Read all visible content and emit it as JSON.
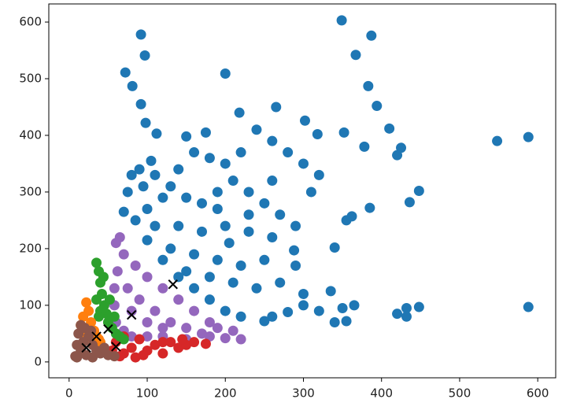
{
  "chart_data": {
    "type": "scatter",
    "xlim": [
      -26,
      623
    ],
    "ylim": [
      -28,
      632
    ],
    "xticks": [
      0,
      100,
      200,
      300,
      400,
      500,
      600
    ],
    "yticks": [
      0,
      100,
      200,
      300,
      400,
      500,
      600
    ],
    "grid": false,
    "series": [
      {
        "color": "#1f77b4",
        "marker": "o",
        "x": [
          92,
          97,
          72,
          81,
          200,
          349,
          387,
          367,
          383,
          394,
          92,
          98,
          112,
          150,
          175,
          218,
          265,
          302,
          318,
          352,
          378,
          410,
          420,
          425,
          436,
          448,
          385,
          362,
          355,
          340,
          288,
          548,
          588,
          588,
          448,
          432,
          420,
          432,
          365,
          350,
          355,
          340,
          335,
          300,
          280,
          260,
          250,
          220,
          200,
          180,
          160,
          140,
          120,
          100,
          85,
          70,
          75,
          80,
          90,
          110,
          130,
          150,
          170,
          190,
          210,
          230,
          250,
          270,
          290,
          310,
          320,
          300,
          280,
          260,
          240,
          220,
          200,
          180,
          160,
          140,
          120,
          100,
          110,
          140,
          170,
          200,
          230,
          260,
          290,
          250,
          220,
          190,
          160,
          130,
          240,
          270,
          300,
          320,
          210,
          180,
          150,
          260,
          230,
          205,
          190,
          95,
          105
        ],
        "values": [
          578,
          541,
          511,
          487,
          509,
          603,
          576,
          542,
          487,
          452,
          455,
          422,
          403,
          398,
          405,
          440,
          450,
          426,
          402,
          405,
          380,
          412,
          365,
          378,
          282,
          302,
          272,
          257,
          250,
          202,
          197,
          390,
          397,
          97,
          97,
          95,
          85,
          80,
          100,
          95,
          72,
          70,
          125,
          100,
          88,
          80,
          72,
          80,
          90,
          110,
          130,
          150,
          180,
          215,
          250,
          265,
          300,
          330,
          340,
          330,
          310,
          290,
          280,
          300,
          320,
          300,
          280,
          260,
          240,
          300,
          330,
          350,
          370,
          390,
          410,
          370,
          350,
          360,
          370,
          340,
          290,
          270,
          240,
          240,
          230,
          240,
          230,
          220,
          170,
          180,
          170,
          180,
          190,
          200,
          130,
          140,
          120,
          90,
          140,
          150,
          160,
          320,
          260,
          210,
          270,
          310,
          355
        ]
      },
      {
        "color": "#9467bd",
        "marker": "o",
        "x": [
          60,
          65,
          70,
          62,
          58,
          58,
          60,
          70,
          80,
          100,
          120,
          150,
          180,
          200,
          220,
          210,
          180,
          160,
          140,
          120,
          100,
          85,
          75,
          90,
          110,
          130,
          150,
          100,
          80,
          120,
          170,
          190
        ],
        "values": [
          210,
          220,
          190,
          160,
          130,
          100,
          70,
          55,
          45,
          45,
          45,
          40,
          45,
          42,
          40,
          55,
          70,
          90,
          110,
          130,
          150,
          170,
          130,
          110,
          90,
          70,
          60,
          70,
          90,
          60,
          50,
          60
        ]
      },
      {
        "color": "#d62728",
        "marker": "o",
        "x": [
          55,
          60,
          70,
          80,
          90,
          100,
          110,
          120,
          130,
          140,
          150,
          160,
          175,
          70,
          65,
          95,
          120,
          145,
          85
        ],
        "values": [
          20,
          35,
          15,
          25,
          40,
          20,
          30,
          15,
          35,
          25,
          30,
          35,
          32,
          45,
          10,
          12,
          35,
          40,
          8
        ]
      },
      {
        "color": "#2ca02c",
        "marker": "o",
        "x": [
          35,
          38,
          40,
          42,
          45,
          48,
          50,
          55,
          60,
          65,
          70,
          40,
          35,
          38,
          52,
          44,
          58
        ],
        "values": [
          175,
          160,
          140,
          120,
          100,
          85,
          70,
          60,
          50,
          45,
          40,
          90,
          110,
          80,
          110,
          150,
          80
        ]
      },
      {
        "color": "#ff7f0e",
        "marker": "o",
        "x": [
          22,
          25,
          18,
          15,
          28,
          32,
          35,
          38,
          40,
          20,
          30
        ],
        "values": [
          105,
          90,
          80,
          65,
          70,
          55,
          45,
          40,
          35,
          50,
          40
        ]
      },
      {
        "color": "#8c564b",
        "marker": "o",
        "x": [
          8,
          10,
          12,
          15,
          20,
          25,
          30,
          35,
          40,
          50,
          58,
          15,
          22,
          30,
          45,
          18,
          28,
          10
        ],
        "values": [
          10,
          30,
          50,
          65,
          60,
          45,
          30,
          20,
          15,
          12,
          10,
          20,
          12,
          8,
          25,
          35,
          55,
          8
        ]
      },
      {
        "color": "#000000",
        "marker": "x",
        "x": [
          22,
          35,
          50,
          60,
          80,
          133
        ],
        "values": [
          25,
          45,
          58,
          27,
          83,
          137
        ]
      }
    ]
  }
}
